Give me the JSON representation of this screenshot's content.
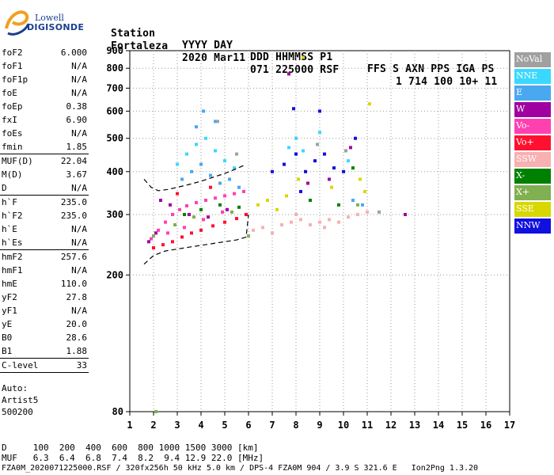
{
  "logo": {
    "line1": "Lowell",
    "line2": "DIGISONDE"
  },
  "header": {
    "row1": [
      "Station",
      "YYYY DAY",
      "DDD HHMMSS P1",
      "FFS S AXN PPS IGA PS"
    ],
    "row2": [
      "Fortaleza",
      "2020 Mar11",
      "071 225000 RSF",
      "1 714 100 10+ 11"
    ]
  },
  "params": {
    "group1": [
      {
        "name": "foF2",
        "value": "6.000"
      },
      {
        "name": "foF1",
        "value": "N/A"
      },
      {
        "name": "foF1p",
        "value": "N/A"
      },
      {
        "name": "foE",
        "value": "N/A"
      },
      {
        "name": "foEp",
        "value": "0.38"
      },
      {
        "name": "fxI",
        "value": "6.90"
      },
      {
        "name": "foEs",
        "value": "N/A"
      },
      {
        "name": "fmin",
        "value": "1.85"
      }
    ],
    "group2": [
      {
        "name": "MUF(D)",
        "value": "22.04"
      },
      {
        "name": "M(D)",
        "value": "3.67"
      },
      {
        "name": "D",
        "value": "N/A"
      }
    ],
    "group3": [
      {
        "name": "h`F",
        "value": "235.0"
      },
      {
        "name": "h`F2",
        "value": "235.0"
      },
      {
        "name": "h`E",
        "value": "N/A"
      },
      {
        "name": "h`Es",
        "value": "N/A"
      }
    ],
    "group4": [
      {
        "name": "hmF2",
        "value": "257.6"
      },
      {
        "name": "hmF1",
        "value": "N/A"
      },
      {
        "name": "hmE",
        "value": "110.0"
      },
      {
        "name": "yF2",
        "value": "27.8"
      },
      {
        "name": "yF1",
        "value": "N/A"
      },
      {
        "name": "yE",
        "value": "20.0"
      },
      {
        "name": "B0",
        "value": "28.6"
      },
      {
        "name": "B1",
        "value": "1.88"
      }
    ],
    "group5": [
      {
        "name": "C-level",
        "value": "33"
      }
    ],
    "auto": [
      "Auto:",
      "Artist5",
      "500200"
    ]
  },
  "legend": [
    {
      "label": "NoVal",
      "color": "#a0a0a0"
    },
    {
      "label": "NNE",
      "color": "#3ad8ff"
    },
    {
      "label": "E",
      "color": "#4aa8f0"
    },
    {
      "label": "W",
      "color": "#a000a0"
    },
    {
      "label": "Vo-",
      "color": "#ff40b0"
    },
    {
      "label": "Vo+",
      "color": "#ff1030"
    },
    {
      "label": "SSW",
      "color": "#f8b0b0"
    },
    {
      "label": "X-",
      "color": "#008000"
    },
    {
      "label": "X+",
      "color": "#80b050"
    },
    {
      "label": "SSE",
      "color": "#d8d800"
    },
    {
      "label": "NNW",
      "color": "#1010e0"
    }
  ],
  "chart_data": {
    "type": "scatter",
    "title": "",
    "xlabel": "",
    "ylabel": "",
    "xlim": [
      1,
      17
    ],
    "ylim": [
      80,
      900
    ],
    "x_ticks": [
      1,
      2,
      3,
      4,
      5,
      6,
      7,
      8,
      9,
      10,
      11,
      12,
      13,
      14,
      15,
      16,
      17
    ],
    "y_ticks": [
      80,
      200,
      300,
      400,
      500,
      600,
      700,
      800,
      900
    ],
    "y_scale": "log",
    "grid": "dotted",
    "legend_position": "right",
    "series": [
      {
        "name": "Vo-",
        "color": "#ff40b0",
        "points": [
          [
            1.9,
            255
          ],
          [
            2.2,
            270
          ],
          [
            2.5,
            285
          ],
          [
            2.8,
            300
          ],
          [
            3.1,
            310
          ],
          [
            3.4,
            318
          ],
          [
            3.8,
            325
          ],
          [
            4.2,
            330
          ],
          [
            4.6,
            335
          ],
          [
            5.0,
            340
          ],
          [
            5.4,
            345
          ],
          [
            5.8,
            350
          ],
          [
            2.6,
            265
          ],
          [
            3.3,
            275
          ],
          [
            4.1,
            290
          ],
          [
            4.9,
            305
          ]
        ]
      },
      {
        "name": "Vo+",
        "color": "#ff1030",
        "points": [
          [
            2.0,
            240
          ],
          [
            2.4,
            245
          ],
          [
            2.8,
            250
          ],
          [
            3.2,
            258
          ],
          [
            3.6,
            265
          ],
          [
            4.0,
            270
          ],
          [
            4.5,
            278
          ],
          [
            5.0,
            285
          ],
          [
            5.5,
            292
          ],
          [
            5.9,
            300
          ],
          [
            3.0,
            345
          ],
          [
            4.4,
            360
          ]
        ]
      },
      {
        "name": "SSW",
        "color": "#f8b0b0",
        "points": [
          [
            6.2,
            270
          ],
          [
            6.6,
            275
          ],
          [
            7.0,
            265
          ],
          [
            7.4,
            280
          ],
          [
            7.8,
            285
          ],
          [
            8.2,
            290
          ],
          [
            8.6,
            280
          ],
          [
            9.0,
            285
          ],
          [
            9.4,
            290
          ],
          [
            9.8,
            285
          ],
          [
            10.2,
            295
          ],
          [
            10.6,
            300
          ],
          [
            11.0,
            305
          ],
          [
            8.0,
            300
          ],
          [
            9.2,
            275
          ]
        ]
      },
      {
        "name": "NNE",
        "color": "#3ad8ff",
        "points": [
          [
            3.0,
            420
          ],
          [
            3.4,
            450
          ],
          [
            3.8,
            480
          ],
          [
            4.2,
            500
          ],
          [
            4.6,
            460
          ],
          [
            5.0,
            430
          ],
          [
            5.4,
            410
          ],
          [
            7.7,
            470
          ],
          [
            8.0,
            500
          ],
          [
            8.3,
            460
          ],
          [
            9.0,
            520
          ],
          [
            10.2,
            430
          ]
        ]
      },
      {
        "name": "E",
        "color": "#4aa8f0",
        "points": [
          [
            3.2,
            380
          ],
          [
            3.6,
            400
          ],
          [
            4.0,
            420
          ],
          [
            4.4,
            390
          ],
          [
            4.8,
            370
          ],
          [
            5.2,
            380
          ],
          [
            5.6,
            360
          ],
          [
            4.1,
            600
          ],
          [
            4.6,
            560
          ],
          [
            3.8,
            540
          ],
          [
            10.4,
            330
          ],
          [
            10.8,
            320
          ]
        ]
      },
      {
        "name": "W",
        "color": "#a000a0",
        "points": [
          [
            1.8,
            250
          ],
          [
            2.1,
            265
          ],
          [
            2.3,
            330
          ],
          [
            2.7,
            320
          ],
          [
            3.5,
            300
          ],
          [
            4.3,
            295
          ],
          [
            5.1,
            310
          ],
          [
            7.7,
            770
          ],
          [
            8.5,
            370
          ],
          [
            9.4,
            380
          ],
          [
            10.3,
            470
          ],
          [
            12.6,
            300
          ]
        ]
      },
      {
        "name": "NNW",
        "color": "#1010e0",
        "points": [
          [
            7.0,
            400
          ],
          [
            7.5,
            420
          ],
          [
            7.9,
            610
          ],
          [
            8.0,
            450
          ],
          [
            8.4,
            400
          ],
          [
            8.8,
            430
          ],
          [
            9.2,
            450
          ],
          [
            9.6,
            410
          ],
          [
            10.0,
            400
          ],
          [
            10.5,
            500
          ],
          [
            8.2,
            350
          ],
          [
            9.0,
            600
          ]
        ]
      },
      {
        "name": "SSE",
        "color": "#d8d800",
        "points": [
          [
            6.4,
            320
          ],
          [
            6.8,
            330
          ],
          [
            7.2,
            310
          ],
          [
            7.6,
            340
          ],
          [
            8.1,
            380
          ],
          [
            8.3,
            860
          ],
          [
            9.5,
            360
          ],
          [
            10.7,
            380
          ],
          [
            11.1,
            630
          ],
          [
            10.9,
            350
          ]
        ]
      },
      {
        "name": "X-",
        "color": "#008000",
        "points": [
          [
            3.3,
            300
          ],
          [
            4.0,
            310
          ],
          [
            4.8,
            320
          ],
          [
            5.6,
            315
          ],
          [
            8.6,
            330
          ],
          [
            9.8,
            320
          ],
          [
            10.4,
            410
          ]
        ]
      },
      {
        "name": "X+",
        "color": "#80b050",
        "points": [
          [
            2.0,
            260
          ],
          [
            2.9,
            280
          ],
          [
            3.7,
            295
          ],
          [
            5.3,
            305
          ],
          [
            6.0,
            260
          ],
          [
            2.1,
            80
          ],
          [
            10.6,
            320
          ]
        ]
      },
      {
        "name": "NoVal",
        "color": "#a0a0a0",
        "points": [
          [
            4.7,
            560
          ],
          [
            5.5,
            450
          ],
          [
            8.9,
            480
          ],
          [
            10.1,
            460
          ],
          [
            11.5,
            305
          ]
        ]
      }
    ],
    "profile_curves": [
      {
        "points": [
          [
            1.6,
            380
          ],
          [
            1.9,
            360
          ],
          [
            2.2,
            352
          ],
          [
            2.6,
            355
          ],
          [
            3.0,
            360
          ],
          [
            3.5,
            367
          ],
          [
            4.0,
            375
          ],
          [
            4.5,
            385
          ],
          [
            5.0,
            395
          ],
          [
            5.5,
            408
          ],
          [
            5.9,
            420
          ]
        ]
      },
      {
        "points": [
          [
            1.6,
            215
          ],
          [
            2.0,
            228
          ],
          [
            2.5,
            235
          ],
          [
            3.0,
            238
          ],
          [
            3.5,
            241
          ],
          [
            4.0,
            244
          ],
          [
            4.5,
            247
          ],
          [
            5.0,
            250
          ],
          [
            5.5,
            253
          ],
          [
            5.9,
            258
          ],
          [
            6.0,
            300
          ]
        ]
      }
    ]
  },
  "footer": {
    "d_row": "D     100  200  400  600  800 1000 1500 3000 [km]",
    "muf_row": "MUF   6.3  6.4  6.8  7.4  8.2  9.4 12.9 22.0 [MHz]",
    "info_row": "FZA0M_2020071225000.RSF / 320fx256h 50 kHz 5.0 km / DPS-4 FZA0M 904 / 3.9 S 321.6 E   Ion2Png 1.3.20"
  }
}
